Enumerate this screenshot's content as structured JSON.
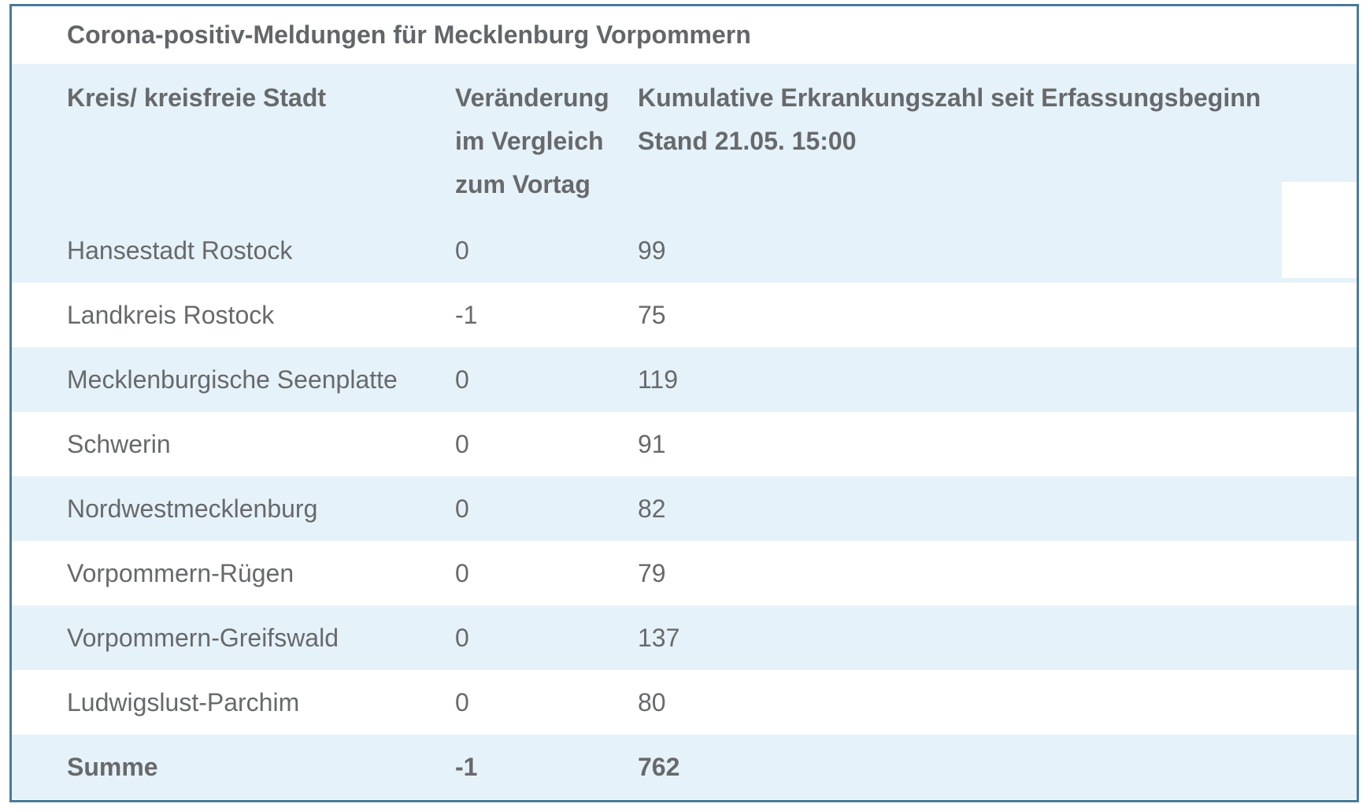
{
  "title": "Corona-positiv-Meldungen für Mecklenburg Vorpommern",
  "table": {
    "columns": {
      "col1": "Kreis/ kreisfreie Stadt",
      "col2": "Veränderung\nim Vergleich\nzum Vortag",
      "col3_line1": "Kumulative Erkrankungszahl seit Erfassungsbeginn",
      "col3_line2": "Stand 21.05. 15:00"
    },
    "rows": [
      {
        "kreis": "Hansestadt Rostock",
        "veraenderung": "0",
        "kumulativ": "99"
      },
      {
        "kreis": "Landkreis Rostock",
        "veraenderung": "-1",
        "kumulativ": "75"
      },
      {
        "kreis": "Mecklenburgische Seenplatte",
        "veraenderung": "0",
        "kumulativ": "119"
      },
      {
        "kreis": "Schwerin",
        "veraenderung": "0",
        "kumulativ": "91"
      },
      {
        "kreis": "Nordwestmecklenburg",
        "veraenderung": "0",
        "kumulativ": "82"
      },
      {
        "kreis": "Vorpommern-Rügen",
        "veraenderung": "0",
        "kumulativ": "79"
      },
      {
        "kreis": "Vorpommern-Greifswald",
        "veraenderung": "0",
        "kumulativ": "137"
      },
      {
        "kreis": "Ludwigslust-Parchim",
        "veraenderung": "0",
        "kumulativ": "80"
      }
    ],
    "summary": {
      "kreis": "Summe",
      "veraenderung": "-1",
      "kumulativ": "762"
    }
  },
  "colors": {
    "stripe_blue": "#e6f2f9",
    "border_blue": "#4a7a99",
    "text_gray": "#67696c"
  }
}
